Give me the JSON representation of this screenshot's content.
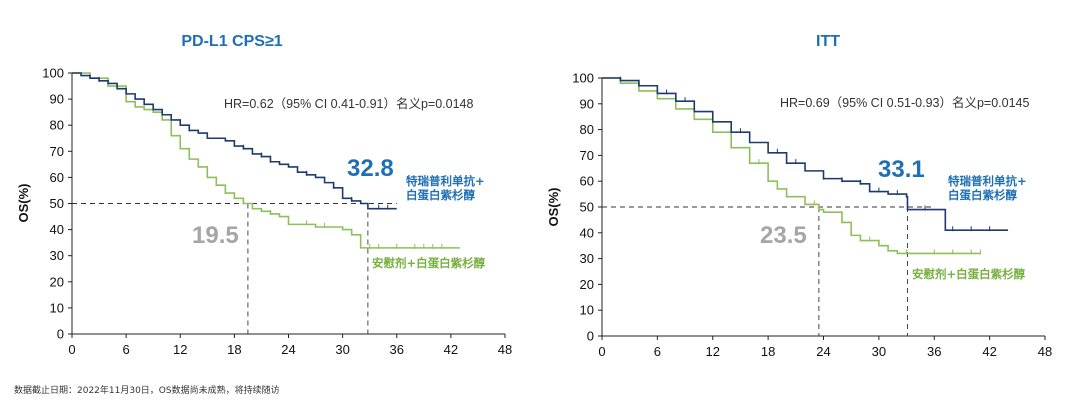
{
  "footnote": "数据截止日期：2022年11月30日，OS数据尚未成熟，将持续随访",
  "colors": {
    "experimental": "#1f3a6e",
    "control": "#8dc05a",
    "title": "#1f6fb5",
    "median_exp_text": "#1f6fb5",
    "median_ctl_text": "#a6a6a6"
  },
  "chart_data": [
    {
      "type": "line",
      "title": "PD-L1 CPS≥1",
      "xlabel": "",
      "ylabel": "OS(%)",
      "xlim": [
        0,
        48
      ],
      "ylim": [
        0,
        100
      ],
      "x_ticks": [
        "0",
        "6",
        "12",
        "18",
        "24",
        "30",
        "36",
        "42",
        "48"
      ],
      "y_ticks": [
        "0",
        "10",
        "20",
        "30",
        "40",
        "50",
        "60",
        "70",
        "80",
        "90",
        "100"
      ],
      "hr_text": "HR=0.62（95% CI 0.41-0.91）名义p=0.0148",
      "median_experimental": "32.8",
      "median_control": "19.5",
      "median_exp_value": 32.8,
      "median_ctl_value": 19.5,
      "legend_experimental": [
        "特瑞普利单抗+",
        "白蛋白紫杉醇"
      ],
      "legend_control": "安慰剂+白蛋白紫杉醇",
      "series": [
        {
          "name": "特瑞普利单抗+白蛋白紫杉醇",
          "points": [
            [
              0,
              100
            ],
            [
              1,
              99
            ],
            [
              2,
              98
            ],
            [
              3,
              97
            ],
            [
              4,
              96
            ],
            [
              5,
              94
            ],
            [
              6,
              92
            ],
            [
              7,
              90
            ],
            [
              8,
              88
            ],
            [
              9,
              86
            ],
            [
              10,
              84
            ],
            [
              11,
              82
            ],
            [
              12,
              80
            ],
            [
              13,
              78
            ],
            [
              14,
              77
            ],
            [
              15,
              75
            ],
            [
              16,
              75
            ],
            [
              17,
              74
            ],
            [
              18,
              72
            ],
            [
              19,
              71
            ],
            [
              20,
              69
            ],
            [
              21,
              68
            ],
            [
              22,
              66
            ],
            [
              23,
              65
            ],
            [
              24,
              64
            ],
            [
              25,
              62
            ],
            [
              26,
              61
            ],
            [
              27,
              60
            ],
            [
              28,
              58
            ],
            [
              29,
              56
            ],
            [
              30,
              52
            ],
            [
              31,
              51
            ],
            [
              32,
              50
            ],
            [
              32.8,
              48
            ],
            [
              36,
              48
            ]
          ],
          "censors": [
            3,
            5,
            8,
            13,
            19,
            21,
            22,
            26,
            29,
            31,
            34,
            35
          ]
        },
        {
          "name": "安慰剂+白蛋白紫杉醇",
          "points": [
            [
              0,
              100
            ],
            [
              2,
              98
            ],
            [
              4,
              95
            ],
            [
              6,
              89
            ],
            [
              7,
              87
            ],
            [
              8,
              86
            ],
            [
              9,
              85
            ],
            [
              10,
              82
            ],
            [
              11,
              76
            ],
            [
              12,
              71
            ],
            [
              13,
              67
            ],
            [
              14,
              64
            ],
            [
              15,
              60
            ],
            [
              16,
              57
            ],
            [
              17,
              54
            ],
            [
              18,
              52
            ],
            [
              19,
              50
            ],
            [
              20,
              48
            ],
            [
              21,
              47
            ],
            [
              22,
              46
            ],
            [
              23,
              45
            ],
            [
              24,
              42
            ],
            [
              25,
              42
            ],
            [
              27,
              41
            ],
            [
              30,
              40
            ],
            [
              31,
              38
            ],
            [
              32,
              33
            ],
            [
              43,
              33
            ]
          ],
          "censors": [
            16,
            19,
            22,
            26,
            28,
            33,
            34,
            36,
            38,
            39,
            40,
            41
          ]
        }
      ]
    },
    {
      "type": "line",
      "title": "ITT",
      "xlabel": "",
      "ylabel": "OS(%)",
      "xlim": [
        0,
        48
      ],
      "ylim": [
        0,
        100
      ],
      "x_ticks": [
        "0",
        "6",
        "12",
        "18",
        "24",
        "30",
        "36",
        "42",
        "48"
      ],
      "y_ticks": [
        "0",
        "10",
        "20",
        "30",
        "40",
        "50",
        "60",
        "70",
        "80",
        "90",
        "100"
      ],
      "hr_text": "HR=0.69（95% CI 0.51-0.93）名义p=0.0145",
      "median_experimental": "33.1",
      "median_control": "23.5",
      "median_exp_value": 33.1,
      "median_ctl_value": 23.5,
      "legend_experimental": [
        "特瑞普利单抗+",
        "白蛋白紫杉醇"
      ],
      "legend_control": "安慰剂+白蛋白紫杉醇",
      "series": [
        {
          "name": "特瑞普利单抗+白蛋白紫杉醇",
          "points": [
            [
              0,
              100
            ],
            [
              2,
              99
            ],
            [
              4,
              97
            ],
            [
              6,
              94
            ],
            [
              8,
              91
            ],
            [
              10,
              87
            ],
            [
              12,
              83
            ],
            [
              14,
              79
            ],
            [
              16,
              75
            ],
            [
              18,
              71
            ],
            [
              20,
              67
            ],
            [
              22,
              64
            ],
            [
              24,
              61
            ],
            [
              26,
              60
            ],
            [
              28,
              59
            ],
            [
              29,
              56
            ],
            [
              31,
              55
            ],
            [
              33,
              54
            ],
            [
              33.1,
              49
            ],
            [
              37,
              49
            ],
            [
              37.2,
              41
            ],
            [
              44,
              41
            ]
          ],
          "censors": [
            2,
            4,
            7,
            9,
            12,
            15,
            19,
            21,
            24,
            26,
            28,
            30,
            32,
            35,
            38,
            40,
            42
          ]
        },
        {
          "name": "安慰剂+白蛋白紫杉醇",
          "points": [
            [
              0,
              100
            ],
            [
              2,
              98
            ],
            [
              4,
              95
            ],
            [
              6,
              92
            ],
            [
              8,
              88
            ],
            [
              10,
              84
            ],
            [
              12,
              79
            ],
            [
              14,
              73
            ],
            [
              16,
              67
            ],
            [
              18,
              60
            ],
            [
              19,
              57
            ],
            [
              20,
              54
            ],
            [
              22,
              51
            ],
            [
              23.5,
              49
            ],
            [
              24,
              48
            ],
            [
              26,
              44
            ],
            [
              27,
              39
            ],
            [
              28,
              37
            ],
            [
              30,
              35
            ],
            [
              31,
              33
            ],
            [
              32,
              32
            ],
            [
              41,
              32
            ]
          ],
          "censors": [
            17,
            20,
            23,
            26,
            29,
            33,
            36,
            38,
            40,
            41
          ]
        }
      ]
    }
  ]
}
